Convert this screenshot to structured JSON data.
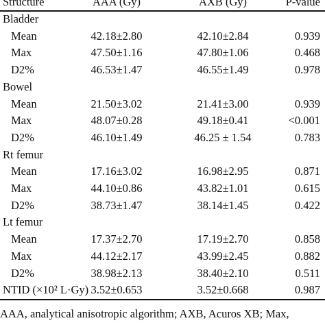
{
  "table": {
    "header": [
      "Structure",
      "AAA (Gy)",
      "AXB (Gy)",
      "P-value"
    ],
    "sections": [
      {
        "title": "Bladder",
        "rows": [
          [
            "Mean",
            "42.18±2.80",
            "42.10±2.84",
            "0.939"
          ],
          [
            "Max",
            "47.50±1.16",
            "47.80±1.06",
            "0.468"
          ],
          [
            "D2%",
            "46.53±1.47",
            "46.55±1.49",
            "0.978"
          ]
        ]
      },
      {
        "title": "Bowel",
        "rows": [
          [
            "Mean",
            "21.50±3.02",
            "21.41±3.00",
            "0.939"
          ],
          [
            "Max",
            "48.07±0.28",
            "49.18±0.41",
            "<0.001"
          ],
          [
            "D2%",
            "46.10±1.49",
            "46.25 ± 1.54",
            "0.783"
          ]
        ]
      },
      {
        "title": "Rt femur",
        "rows": [
          [
            "Mean",
            "17.16±3.02",
            "16.98±2.95",
            "0.871"
          ],
          [
            "Max",
            "44.10±0.86",
            "43.82±1.01",
            "0.615"
          ],
          [
            "D2%",
            "38.73±1.47",
            "38.14±1.45",
            "0.422"
          ]
        ]
      },
      {
        "title": "Lt femur",
        "rows": [
          [
            "Mean",
            "17.37±2.70",
            "17.19±2.70",
            "0.858"
          ],
          [
            "Max",
            "44.12±2.17",
            "43.99±2.45",
            "0.882"
          ],
          [
            "D2%",
            "38.98±2.13",
            "38.40±2.10",
            "0.511"
          ]
        ]
      }
    ],
    "summary": [
      "NTID (×10² L·Gy)",
      "3.52±0.653",
      "3.52±0.668",
      "0.987"
    ],
    "footnote": "AAA, analytical anisotropic algorithm; AXB, Acuros XB; Max,"
  }
}
